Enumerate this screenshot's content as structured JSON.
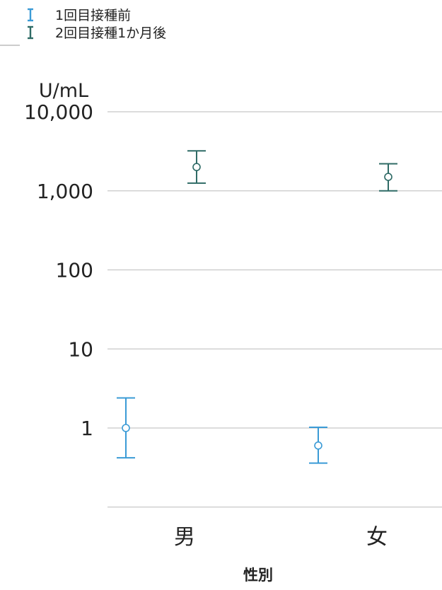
{
  "chart_data": {
    "type": "scatter",
    "title": "",
    "ylabel": "U/mL",
    "xlabel": "性別",
    "y_scale": "log",
    "ylim": [
      0.1,
      10000
    ],
    "yticks": [
      {
        "value": 10000,
        "label": "10,000"
      },
      {
        "value": 1000,
        "label": "1,000"
      },
      {
        "value": 100,
        "label": "100"
      },
      {
        "value": 10,
        "label": "10"
      },
      {
        "value": 1,
        "label": "1"
      }
    ],
    "categories": [
      "男",
      "女"
    ],
    "grid": true,
    "legend_position": "top-left",
    "series": [
      {
        "name": "1回目接種前",
        "color": "#3b9bd6",
        "points": [
          {
            "category": "男",
            "y": 1.0,
            "lower": 0.42,
            "upper": 2.4
          },
          {
            "category": "女",
            "y": 0.6,
            "lower": 0.36,
            "upper": 1.02
          }
        ]
      },
      {
        "name": "2回目接種1か月後",
        "color": "#2f6b66",
        "points": [
          {
            "category": "男",
            "y": 2000,
            "lower": 1250,
            "upper": 3200
          },
          {
            "category": "女",
            "y": 1500,
            "lower": 1000,
            "upper": 2200
          }
        ]
      }
    ]
  }
}
